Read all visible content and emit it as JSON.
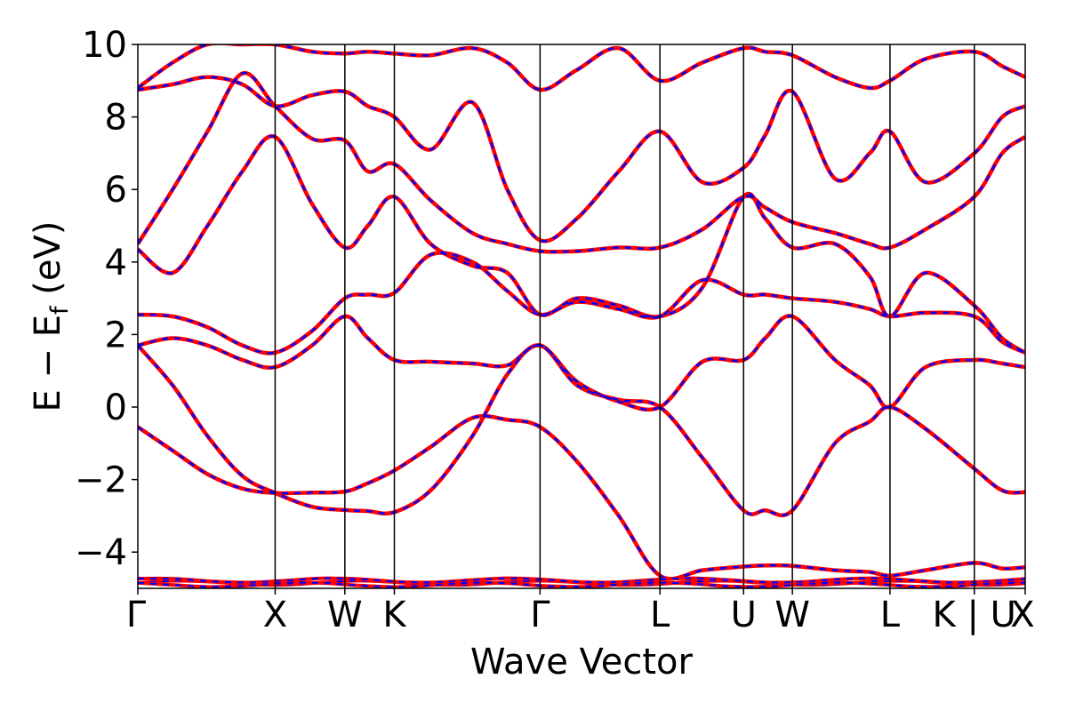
{
  "chart_data": {
    "type": "line",
    "title": "",
    "xlabel": "Wave Vector",
    "ylabel_parts": {
      "main": "E − E",
      "sub": "f",
      "unit": " (eV)"
    },
    "ylim": [
      -5,
      10
    ],
    "yticks": [
      -4,
      -2,
      0,
      2,
      4,
      6,
      8,
      10
    ],
    "ytick_labels": [
      "−4",
      "−2",
      "0",
      "2",
      "4",
      "6",
      "8",
      "10"
    ],
    "xlim": [
      0,
      12.73
    ],
    "high_symmetry_points": [
      {
        "label": "Γ",
        "x": 0
      },
      {
        "label": "X",
        "x": 1.97
      },
      {
        "label": "W",
        "x": 2.97
      },
      {
        "label": "K",
        "x": 3.68
      },
      {
        "label": "Γ",
        "x": 5.77
      },
      {
        "label": "L",
        "x": 7.49
      },
      {
        "label": "U",
        "x": 8.69
      },
      {
        "label": "W",
        "x": 9.39
      },
      {
        "label": "L",
        "x": 10.79
      },
      {
        "label": "K | U",
        "x": 12.0
      },
      {
        "label": "X",
        "x": 12.73
      }
    ],
    "legend": "none",
    "grid": false,
    "series": [
      {
        "color": "#ff0000",
        "dash": "solid",
        "bands": [
          {
            "x": [
              0,
              0.5,
              1,
              1.5,
              1.97,
              2.5,
              2.97,
              3.3,
              3.68,
              4.2,
              4.8,
              5.3,
              5.77,
              6.3,
              6.9,
              7.49,
              8.1,
              8.69,
              9.0,
              9.39,
              10.0,
              10.5,
              10.79,
              11.3,
              12.0,
              12.4,
              12.73
            ],
            "y": [
              -0.55,
              -1.2,
              -1.85,
              -2.25,
              -2.37,
              -2.36,
              -2.33,
              -2.1,
              -1.75,
              -1.1,
              -0.3,
              -0.35,
              -0.55,
              -1.5,
              -3.0,
              -4.65,
              -4.5,
              -4.4,
              -4.37,
              -4.38,
              -4.5,
              -4.55,
              -4.65,
              -4.5,
              -4.3,
              -4.45,
              -4.42
            ]
          },
          {
            "x": [
              0,
              0.5,
              1,
              1.5,
              1.97,
              2.5,
              2.97,
              3.3,
              3.68,
              4.2,
              4.8,
              5.3,
              5.77,
              6.3,
              6.9,
              7.49,
              8.1,
              8.69,
              9.0,
              9.39,
              10.0,
              10.5,
              10.79,
              11.3,
              12.0,
              12.4,
              12.73
            ],
            "y": [
              1.7,
              0.6,
              -0.8,
              -1.9,
              -2.37,
              -2.75,
              -2.84,
              -2.87,
              -2.9,
              -2.3,
              -0.8,
              0.9,
              1.7,
              0.6,
              0.2,
              0.0,
              -1.4,
              -2.85,
              -2.85,
              -2.85,
              -1.0,
              -0.4,
              0.0,
              -0.6,
              -1.7,
              -2.3,
              -2.35
            ]
          },
          {
            "x": [
              0,
              0.5,
              1,
              1.5,
              1.97,
              2.5,
              2.97,
              3.3,
              3.68,
              4.2,
              4.8,
              5.3,
              5.77,
              6.3,
              6.9,
              7.49,
              8.1,
              8.69,
              9.0,
              9.39,
              10.0,
              10.5,
              10.79,
              11.3,
              12.0,
              12.4,
              12.73
            ],
            "y": [
              1.7,
              1.9,
              1.7,
              1.3,
              1.1,
              1.7,
              2.5,
              1.9,
              1.3,
              1.25,
              1.2,
              1.15,
              1.7,
              0.7,
              0.15,
              0.0,
              1.25,
              1.3,
              1.9,
              2.5,
              1.3,
              0.6,
              0.0,
              1.1,
              1.3,
              1.2,
              1.1
            ]
          },
          {
            "x": [
              0,
              0.5,
              1,
              1.5,
              1.97,
              2.5,
              2.97,
              3.3,
              3.68,
              4.2,
              4.8,
              5.3,
              5.77,
              6.3,
              6.9,
              7.49,
              8.1,
              8.69,
              9.0,
              9.39,
              10.0,
              10.5,
              10.79,
              11.3,
              12.0,
              12.4,
              12.73
            ],
            "y": [
              2.55,
              2.5,
              2.2,
              1.7,
              1.5,
              2.1,
              3.0,
              3.1,
              3.15,
              4.2,
              4.0,
              3.2,
              2.55,
              2.9,
              2.7,
              2.5,
              3.5,
              3.1,
              3.1,
              3.0,
              2.9,
              2.7,
              2.5,
              2.6,
              2.5,
              1.8,
              1.5
            ]
          },
          {
            "x": [
              0,
              0.5,
              1,
              1.5,
              1.97,
              2.5,
              2.97,
              3.3,
              3.68,
              4.2,
              4.8,
              5.3,
              5.77,
              6.3,
              6.9,
              7.49,
              8.1,
              8.69,
              9.0,
              9.39,
              10.0,
              10.5,
              10.79,
              11.3,
              12.0,
              12.4,
              12.73
            ],
            "y": [
              4.35,
              3.7,
              5.0,
              6.5,
              7.45,
              5.6,
              4.4,
              5.0,
              5.8,
              4.5,
              3.9,
              3.7,
              2.55,
              3.0,
              2.8,
              2.5,
              3.3,
              5.8,
              5.2,
              4.4,
              4.5,
              3.6,
              2.5,
              3.7,
              2.8,
              1.9,
              1.5
            ]
          },
          {
            "x": [
              0,
              0.5,
              1,
              1.5,
              1.97,
              2.5,
              2.97,
              3.3,
              3.68,
              4.2,
              4.8,
              5.3,
              5.77,
              6.3,
              6.9,
              7.49,
              8.1,
              8.69,
              9.0,
              9.39,
              10.0,
              10.5,
              10.79,
              11.3,
              12.0,
              12.4,
              12.73
            ],
            "y": [
              4.5,
              6.0,
              7.6,
              9.2,
              8.3,
              7.4,
              7.35,
              6.5,
              6.7,
              5.7,
              4.8,
              4.5,
              4.3,
              4.3,
              4.4,
              4.4,
              4.9,
              5.8,
              5.5,
              5.1,
              4.8,
              4.5,
              4.4,
              4.9,
              5.8,
              7.0,
              7.45
            ]
          },
          {
            "x": [
              0,
              0.5,
              1,
              1.5,
              1.97,
              2.5,
              2.97,
              3.3,
              3.68,
              4.2,
              4.8,
              5.3,
              5.77,
              6.3,
              6.9,
              7.49,
              8.1,
              8.69,
              9.0,
              9.39,
              10.0,
              10.5,
              10.79,
              11.3,
              12.0,
              12.4,
              12.73
            ],
            "y": [
              8.75,
              8.9,
              9.1,
              8.9,
              8.3,
              8.6,
              8.7,
              8.3,
              8.0,
              7.1,
              8.4,
              6.0,
              4.6,
              5.2,
              6.5,
              7.6,
              6.2,
              6.6,
              7.5,
              8.7,
              6.3,
              7.0,
              7.6,
              6.2,
              7.0,
              8.0,
              8.3
            ]
          },
          {
            "x": [
              0,
              0.5,
              1,
              1.5,
              1.97,
              2.5,
              2.97,
              3.3,
              3.68,
              4.2,
              4.8,
              5.3,
              5.77,
              6.3,
              6.9,
              7.49,
              8.1,
              8.69,
              9.0,
              9.39,
              10.0,
              10.5,
              10.79,
              11.3,
              12.0,
              12.4,
              12.73
            ],
            "y": [
              8.8,
              9.5,
              10.0,
              10.0,
              10.0,
              9.8,
              9.75,
              9.8,
              9.75,
              9.7,
              9.9,
              9.5,
              8.75,
              9.3,
              9.9,
              9.0,
              9.5,
              9.9,
              9.8,
              9.7,
              9.1,
              8.8,
              9.0,
              9.6,
              9.8,
              9.4,
              9.1
            ]
          }
        ]
      },
      {
        "color": "#0000ff",
        "dash": "dashed",
        "bands": "same-as-red"
      }
    ]
  }
}
